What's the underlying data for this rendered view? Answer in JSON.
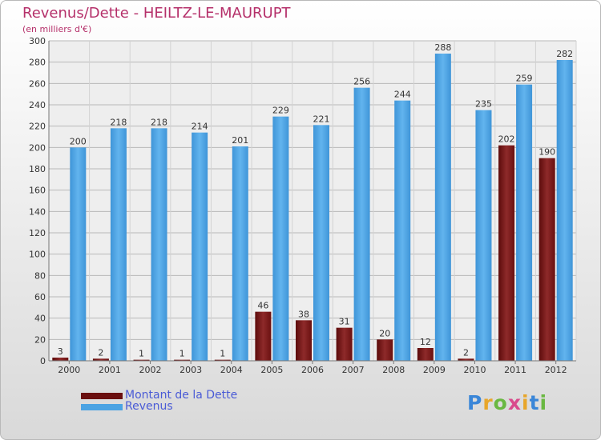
{
  "chart_data": {
    "type": "bar",
    "title": "Revenus/Dette - HEILTZ-LE-MAURUPT",
    "subtitle": "(en milliers d'€)",
    "categories": [
      "2000",
      "2001",
      "2002",
      "2003",
      "2004",
      "2005",
      "2006",
      "2007",
      "2008",
      "2009",
      "2010",
      "2011",
      "2012"
    ],
    "series": [
      {
        "name": "Montant de la Dette",
        "color": "#7a1515",
        "values": [
          3,
          2,
          1,
          1,
          1,
          46,
          38,
          31,
          20,
          12,
          2,
          202,
          190
        ]
      },
      {
        "name": "Revenus",
        "color": "#4ba3e3",
        "values": [
          200,
          218,
          218,
          214,
          201,
          229,
          221,
          256,
          244,
          288,
          235,
          259,
          282
        ]
      }
    ],
    "ylim": [
      0,
      300
    ],
    "yticks": [
      0,
      20,
      40,
      60,
      80,
      100,
      120,
      140,
      160,
      180,
      200,
      220,
      240,
      260,
      280,
      300
    ],
    "grid": true,
    "legend_position": "bottom-left"
  },
  "logo": {
    "letters": [
      "P",
      "r",
      "o",
      "x",
      "i",
      "t",
      "i"
    ],
    "colors": [
      "#3a86d8",
      "#e8a62a",
      "#6ab842",
      "#d94a8c",
      "#e8a62a",
      "#3a86d8",
      "#6ab842"
    ]
  }
}
